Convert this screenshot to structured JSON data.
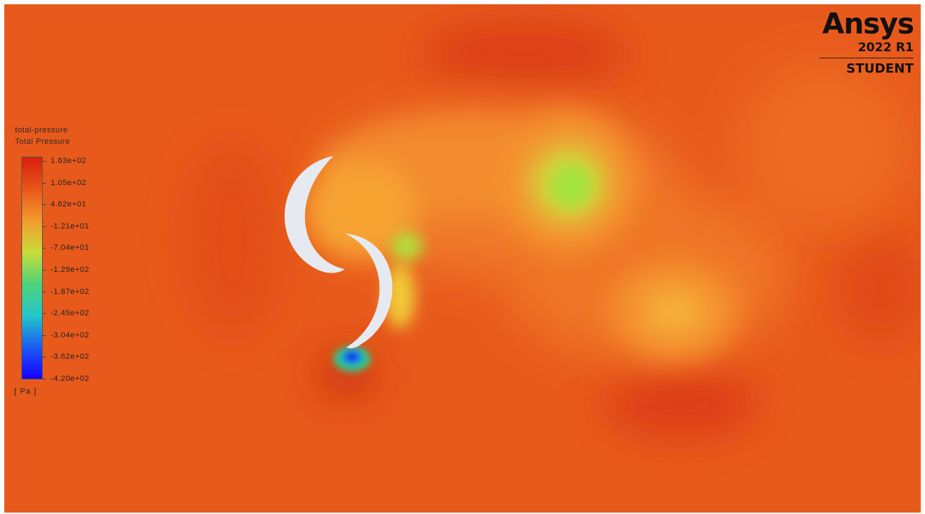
{
  "legend": {
    "variable": "total-pressure",
    "title": "Total Pressure",
    "units": "[ Pa ]",
    "ticks": [
      "1.63e+02",
      "1.05e+02",
      "4.62e+01",
      "-1.21e+01",
      "-7.04e+01",
      "-1.29e+02",
      "-1.87e+02",
      "-2.45e+02",
      "-3.04e+02",
      "-3.62e+02",
      "-4.20e+02"
    ],
    "range": [
      -420,
      163
    ],
    "colormap": [
      "#d91e0b",
      "#e8561a",
      "#f39a2e",
      "#c9dc3a",
      "#4fd27a",
      "#23c7c9",
      "#1c5cf2",
      "#1600ff"
    ]
  },
  "logo": {
    "brand": "Ansys",
    "version": "2022 R1",
    "edition": "STUDENT"
  },
  "colors": {
    "background_field": "#e8561a",
    "blade": "#e6eaf0"
  }
}
